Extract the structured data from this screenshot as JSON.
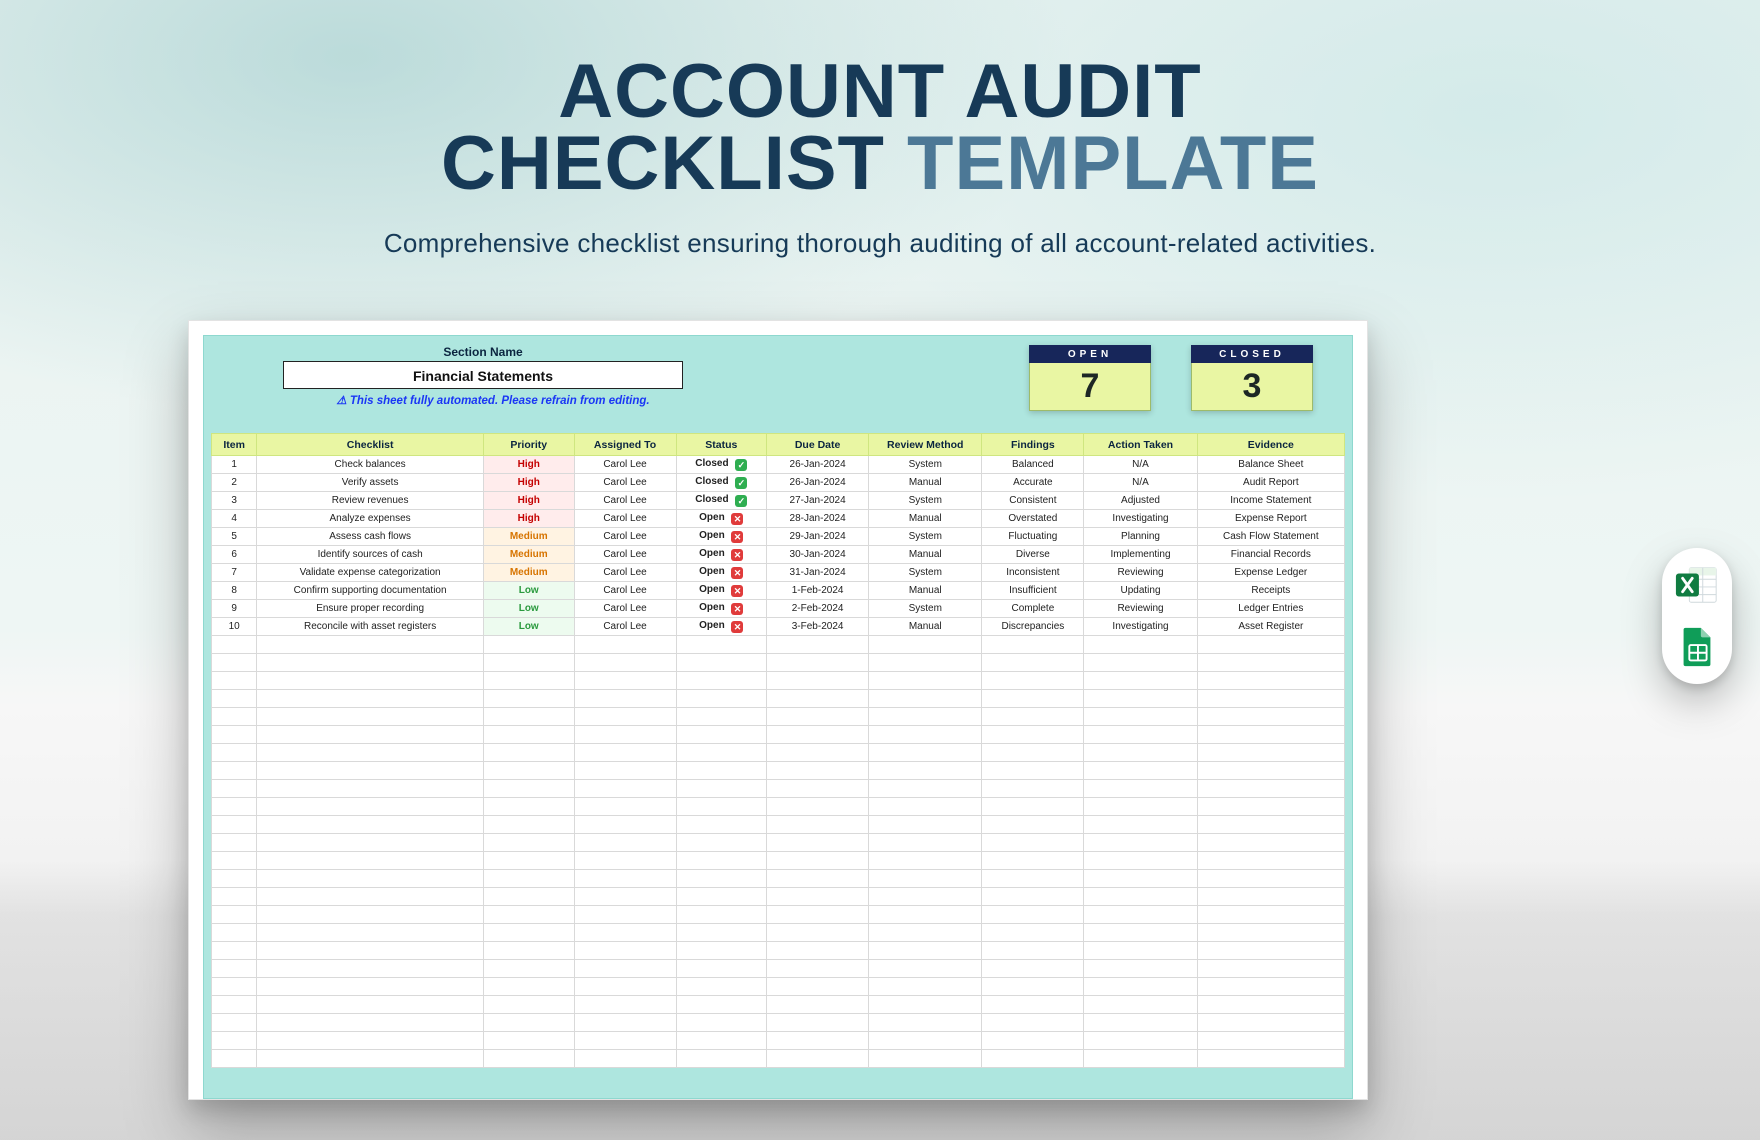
{
  "hero": {
    "line1_dark": "ACCOUNT AUDIT",
    "line2_dark": "CHECKLIST",
    "line2_light": " TEMPLATE",
    "subtitle": "Comprehensive checklist ensuring thorough auditing of all account-related activities."
  },
  "colors": {
    "title_dark": "#173a57",
    "title_light": "#4c7896",
    "sheet_bg": "#aee6df",
    "header_bg": "#e9f6a3",
    "counter_cap": "#17265a",
    "counter_bg": "#e9f6a3",
    "warning": "#1a36f5"
  },
  "sheet": {
    "section_label": "Section Name",
    "section_value": "Financial Statements",
    "warning": "⚠ This sheet fully automated. Please refrain from editing.",
    "counters": {
      "open_label": "OPEN",
      "open_value": "7",
      "closed_label": "CLOSED",
      "closed_value": "3"
    },
    "columns": [
      "Item",
      "Checklist",
      "Priority",
      "Assigned To",
      "Status",
      "Due Date",
      "Review Method",
      "Findings",
      "Action Taken",
      "Evidence"
    ],
    "col_widths_pct": [
      4,
      20,
      8,
      9,
      8,
      9,
      10,
      9,
      10,
      13
    ],
    "rows": [
      {
        "item": "1",
        "checklist": "Check balances",
        "priority": "High",
        "assigned": "Carol Lee",
        "status": "Closed",
        "due": "26-Jan-2024",
        "method": "System",
        "findings": "Balanced",
        "action": "N/A",
        "evidence": "Balance Sheet"
      },
      {
        "item": "2",
        "checklist": "Verify assets",
        "priority": "High",
        "assigned": "Carol Lee",
        "status": "Closed",
        "due": "26-Jan-2024",
        "method": "Manual",
        "findings": "Accurate",
        "action": "N/A",
        "evidence": "Audit Report"
      },
      {
        "item": "3",
        "checklist": "Review revenues",
        "priority": "High",
        "assigned": "Carol Lee",
        "status": "Closed",
        "due": "27-Jan-2024",
        "method": "System",
        "findings": "Consistent",
        "action": "Adjusted",
        "evidence": "Income Statement"
      },
      {
        "item": "4",
        "checklist": "Analyze expenses",
        "priority": "High",
        "assigned": "Carol Lee",
        "status": "Open",
        "due": "28-Jan-2024",
        "method": "Manual",
        "findings": "Overstated",
        "action": "Investigating",
        "evidence": "Expense Report"
      },
      {
        "item": "5",
        "checklist": "Assess cash flows",
        "priority": "Medium",
        "assigned": "Carol Lee",
        "status": "Open",
        "due": "29-Jan-2024",
        "method": "System",
        "findings": "Fluctuating",
        "action": "Planning",
        "evidence": "Cash Flow Statement"
      },
      {
        "item": "6",
        "checklist": "Identify sources of cash",
        "priority": "Medium",
        "assigned": "Carol Lee",
        "status": "Open",
        "due": "30-Jan-2024",
        "method": "Manual",
        "findings": "Diverse",
        "action": "Implementing",
        "evidence": "Financial Records"
      },
      {
        "item": "7",
        "checklist": "Validate expense categorization",
        "priority": "Medium",
        "assigned": "Carol Lee",
        "status": "Open",
        "due": "31-Jan-2024",
        "method": "System",
        "findings": "Inconsistent",
        "action": "Reviewing",
        "evidence": "Expense Ledger"
      },
      {
        "item": "8",
        "checklist": "Confirm supporting documentation",
        "priority": "Low",
        "assigned": "Carol Lee",
        "status": "Open",
        "due": "1-Feb-2024",
        "method": "Manual",
        "findings": "Insufficient",
        "action": "Updating",
        "evidence": "Receipts"
      },
      {
        "item": "9",
        "checklist": "Ensure proper recording",
        "priority": "Low",
        "assigned": "Carol Lee",
        "status": "Open",
        "due": "2-Feb-2024",
        "method": "System",
        "findings": "Complete",
        "action": "Reviewing",
        "evidence": "Ledger Entries"
      },
      {
        "item": "10",
        "checklist": "Reconcile with asset registers",
        "priority": "Low",
        "assigned": "Carol Lee",
        "status": "Open",
        "due": "3-Feb-2024",
        "method": "Manual",
        "findings": "Discrepancies",
        "action": "Investigating",
        "evidence": "Asset Register"
      }
    ],
    "empty_rows": 24
  },
  "download_icons": {
    "excel_label": "Excel",
    "sheets_label": "Google Sheets"
  }
}
